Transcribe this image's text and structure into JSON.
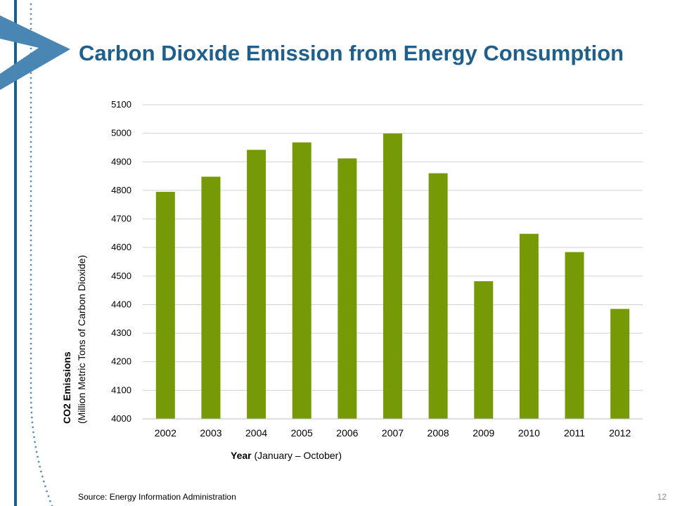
{
  "slide": {
    "title": "Carbon Dioxide Emission from Energy Consumption",
    "source": "Source: Energy Information Administration",
    "page_number": "12",
    "colors": {
      "title": "#1f5f8b",
      "accent_blue": "#1f5f8b",
      "chevron": "#4a86b4",
      "dots": "#5a90bd"
    },
    "icons": [
      "chevron-logo-icon"
    ]
  },
  "chart_data": {
    "type": "bar",
    "title": "",
    "categories": [
      "2002",
      "2003",
      "2004",
      "2005",
      "2006",
      "2007",
      "2008",
      "2009",
      "2010",
      "2011",
      "2012"
    ],
    "series": [
      {
        "values": [
          4795,
          4848,
          4942,
          4968,
          4912,
          4999,
          4860,
          4482,
          4648,
          4584,
          4385
        ]
      }
    ],
    "ylim": [
      4000,
      5100
    ],
    "yticks": [
      4000,
      4100,
      4200,
      4300,
      4400,
      4500,
      4600,
      4700,
      4800,
      4900,
      5000,
      5100
    ],
    "ylabel": {
      "bold": "CO2 Emissions",
      "normal": "(Million Metric Tons of Carbon Dioxide)"
    },
    "xlabel": {
      "bold": "Year",
      "normal": " (January – October)"
    },
    "grid": true,
    "legend": "none",
    "bar_color": "#769a06"
  }
}
